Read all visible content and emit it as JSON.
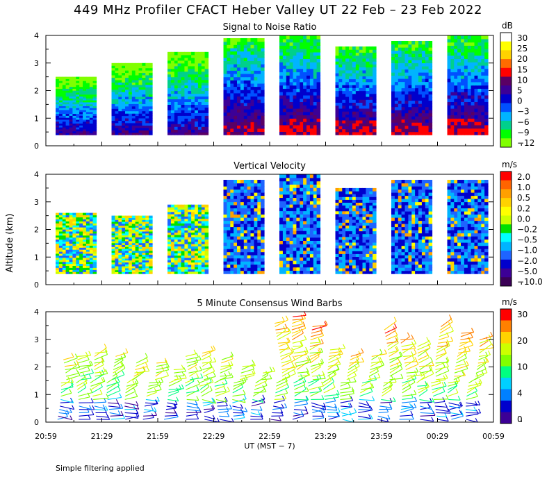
{
  "title": "449 MHz Profiler CFACT Heber Valley UT 22 Feb – 23 Feb 2022",
  "footer": "Simple filtering applied",
  "colors": {
    "snr": [
      "#80ff00",
      "#00ff00",
      "#00d08c",
      "#00b4ff",
      "#0050ff",
      "#0000cc",
      "#3c0096",
      "#5a0064",
      "#ff0000",
      "#ff6a00",
      "#ffd200",
      "#ffff00",
      "#ffffff"
    ],
    "vv": [
      "#3a0055",
      "#3c0096",
      "#0000cc",
      "#1e64ff",
      "#00b4ff",
      "#00ffff",
      "#00e000",
      "#ccff00",
      "#ffff00",
      "#ffd200",
      "#ffa000",
      "#ff6400",
      "#ff0000"
    ],
    "wind": [
      "#3c0096",
      "#0000cc",
      "#0080ff",
      "#00d0ff",
      "#00ff80",
      "#80ff00",
      "#ccff00",
      "#ffd200",
      "#ff8000",
      "#ff0000"
    ]
  },
  "chart_data": [
    {
      "type": "heatmap",
      "title": "Signal to Noise Ratio",
      "units": "dB",
      "ylabel": "",
      "ylim": [
        0,
        4
      ],
      "yticks": [
        "0",
        "1",
        "2",
        "3",
        "4"
      ],
      "colorbar_labels": [
        "30",
        "25",
        "20",
        "15",
        "10",
        "5",
        "0",
        "−3",
        "−6",
        "−9",
        "−12"
      ],
      "segments": [
        {
          "start": "20:59",
          "end": "21:29",
          "top_km": 2.5
        },
        {
          "start": "21:29",
          "end": "21:59",
          "top_km": 3.0
        },
        {
          "start": "21:59",
          "end": "22:29",
          "top_km": 3.4
        },
        {
          "start": "22:29",
          "end": "22:59",
          "top_km": 3.9
        },
        {
          "start": "22:59",
          "end": "23:29",
          "top_km": 4.0
        },
        {
          "start": "23:29",
          "end": "23:59",
          "top_km": 3.6
        },
        {
          "start": "23:59",
          "end": "00:29",
          "top_km": 3.8
        },
        {
          "start": "00:29",
          "end": "00:59",
          "top_km": 4.0
        }
      ]
    },
    {
      "type": "heatmap",
      "title": "Vertical Velocity",
      "units": "m/s",
      "ylabel": "Altitude (km)",
      "ylim": [
        0,
        4
      ],
      "yticks": [
        "0",
        "1",
        "2",
        "3",
        "4"
      ],
      "colorbar_labels": [
        "2.0",
        "1.0",
        "0.5",
        "0.2",
        "0.0",
        "−0.2",
        "−0.5",
        "−1.0",
        "−2.0",
        "−5.0",
        "−10.0"
      ],
      "segments": [
        {
          "start": "20:59",
          "end": "21:29",
          "top_km": 2.6
        },
        {
          "start": "21:29",
          "end": "21:59",
          "top_km": 2.5
        },
        {
          "start": "21:59",
          "end": "22:29",
          "top_km": 2.9
        },
        {
          "start": "22:29",
          "end": "22:59",
          "top_km": 3.8
        },
        {
          "start": "22:59",
          "end": "23:29",
          "top_km": 4.0
        },
        {
          "start": "23:29",
          "end": "23:59",
          "top_km": 3.5
        },
        {
          "start": "23:59",
          "end": "00:29",
          "top_km": 3.8
        },
        {
          "start": "00:29",
          "end": "00:59",
          "top_km": 3.8
        }
      ]
    },
    {
      "type": "scatter",
      "title": "5 Minute Consensus Wind Barbs",
      "units": "m/s",
      "ylabel": "",
      "ylim": [
        0,
        4
      ],
      "yticks": [
        "0",
        "1",
        "2",
        "3",
        "4"
      ],
      "colorbar_labels": [
        "30",
        "20",
        "10",
        "4",
        "0"
      ],
      "xlabel": "UT  (MST − 7)",
      "xticks": [
        "20:59",
        "21:29",
        "21:59",
        "22:29",
        "22:59",
        "23:29",
        "23:59",
        "00:29",
        "00:59"
      ],
      "profile_top_km": [
        2.3,
        2.5,
        2.6,
        2.4,
        2.2,
        2.2,
        2.0,
        2.5,
        2.6,
        2.3,
        2.1,
        1.9,
        3.6,
        3.9,
        3.5,
        2.7,
        2.5,
        2.5,
        3.4,
        3.0,
        2.8,
        3.5,
        3.3,
        3.1
      ]
    }
  ]
}
